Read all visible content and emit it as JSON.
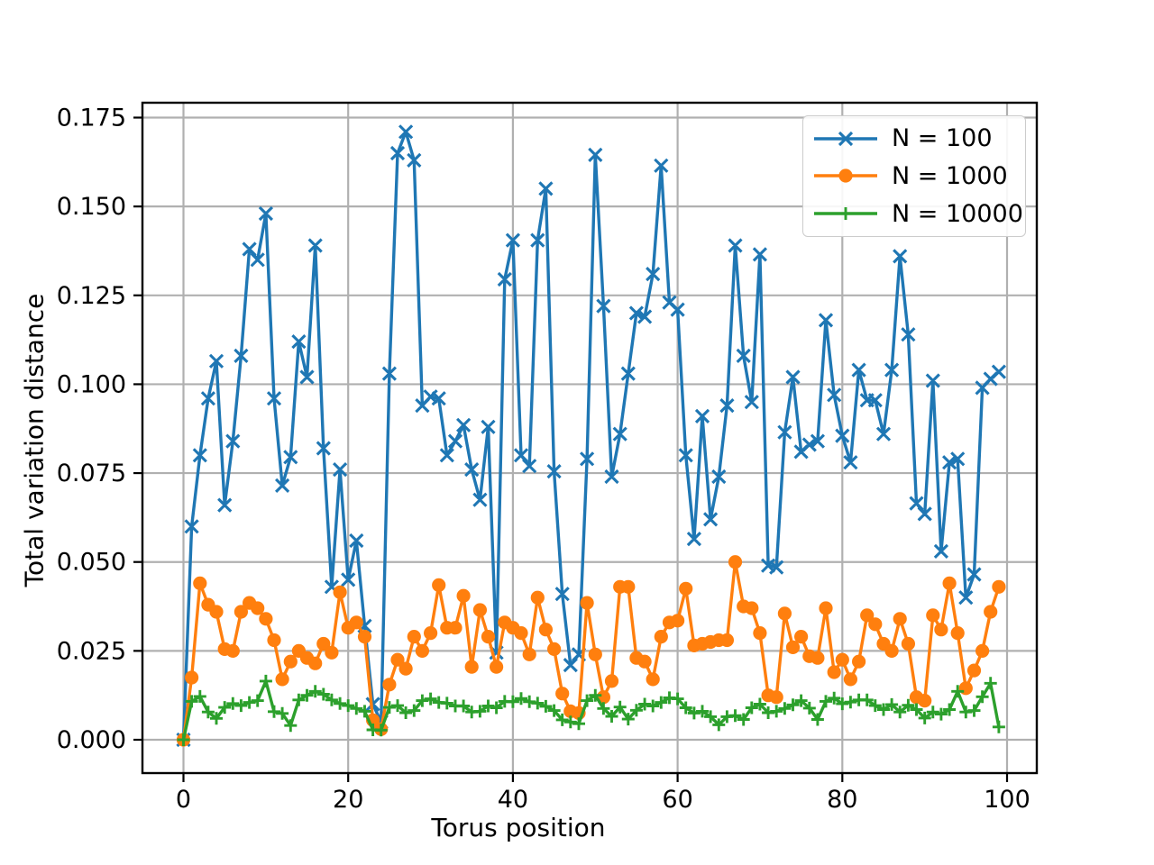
{
  "chart_data": {
    "type": "line",
    "title": "",
    "xlabel": "Torus position",
    "ylabel": "Total variation distance",
    "grid": true,
    "legend_position": "upper right",
    "xlim": [
      -5,
      104
    ],
    "ylim": [
      -0.0093,
      0.1793
    ],
    "x_ticks": [
      0,
      20,
      40,
      60,
      80,
      100
    ],
    "x_tick_labels": [
      "0",
      "20",
      "40",
      "60",
      "80",
      "100"
    ],
    "y_ticks": [
      0,
      0.025,
      0.05,
      0.075,
      0.1,
      0.125,
      0.15,
      0.175
    ],
    "y_tick_labels": [
      "0.000",
      "0.025",
      "0.050",
      "0.075",
      "0.100",
      "0.125",
      "0.150",
      "0.175"
    ],
    "grid_color": "#b0b0b0",
    "x": [
      0,
      1,
      2,
      3,
      4,
      5,
      6,
      7,
      8,
      9,
      10,
      11,
      12,
      13,
      14,
      15,
      16,
      17,
      18,
      19,
      20,
      21,
      22,
      23,
      24,
      25,
      26,
      27,
      28,
      29,
      30,
      31,
      32,
      33,
      34,
      35,
      36,
      37,
      38,
      39,
      40,
      41,
      42,
      43,
      44,
      45,
      46,
      47,
      48,
      49,
      50,
      51,
      52,
      53,
      54,
      55,
      56,
      57,
      58,
      59,
      60,
      61,
      62,
      63,
      64,
      65,
      66,
      67,
      68,
      69,
      70,
      71,
      72,
      73,
      74,
      75,
      76,
      77,
      78,
      79,
      80,
      81,
      82,
      83,
      84,
      85,
      86,
      87,
      88,
      89,
      90,
      91,
      92,
      93,
      94,
      95,
      96,
      97,
      98,
      99
    ],
    "series": [
      {
        "name": "N = 100",
        "color": "#1f77b4",
        "marker": "x",
        "values": [
          0.0,
          0.06,
          0.08,
          0.096,
          0.1065,
          0.066,
          0.084,
          0.108,
          0.138,
          0.135,
          0.148,
          0.096,
          0.0715,
          0.0795,
          0.112,
          0.102,
          0.139,
          0.082,
          0.043,
          0.076,
          0.045,
          0.056,
          0.032,
          0.01,
          0.005,
          0.103,
          0.165,
          0.171,
          0.163,
          0.094,
          0.0965,
          0.096,
          0.08,
          0.084,
          0.0885,
          0.076,
          0.0675,
          0.088,
          0.0245,
          0.1295,
          0.1405,
          0.08,
          0.077,
          0.1405,
          0.155,
          0.0755,
          0.041,
          0.021,
          0.024,
          0.079,
          0.1645,
          0.122,
          0.074,
          0.086,
          0.103,
          0.12,
          0.119,
          0.131,
          0.1615,
          0.123,
          0.121,
          0.08,
          0.0565,
          0.091,
          0.062,
          0.074,
          0.094,
          0.139,
          0.108,
          0.095,
          0.1365,
          0.049,
          0.0485,
          0.0865,
          0.102,
          0.081,
          0.083,
          0.084,
          0.118,
          0.097,
          0.0855,
          0.078,
          0.104,
          0.0955,
          0.0955,
          0.086,
          0.104,
          0.136,
          0.114,
          0.0665,
          0.0635,
          0.101,
          0.053,
          0.078,
          0.079,
          0.04,
          0.0465,
          0.099,
          0.1015,
          0.1035
        ]
      },
      {
        "name": "N = 1000",
        "color": "#ff7f0e",
        "marker": "o",
        "values": [
          0.0,
          0.0175,
          0.044,
          0.038,
          0.036,
          0.0255,
          0.025,
          0.036,
          0.0385,
          0.037,
          0.034,
          0.028,
          0.017,
          0.022,
          0.025,
          0.023,
          0.0215,
          0.027,
          0.0245,
          0.0415,
          0.0315,
          0.033,
          0.029,
          0.0055,
          0.003,
          0.0155,
          0.0225,
          0.02,
          0.029,
          0.025,
          0.03,
          0.0435,
          0.0315,
          0.0315,
          0.0405,
          0.0205,
          0.0365,
          0.029,
          0.0205,
          0.033,
          0.0315,
          0.03,
          0.024,
          0.04,
          0.031,
          0.0255,
          0.013,
          0.008,
          0.0075,
          0.0385,
          0.024,
          0.012,
          0.0165,
          0.043,
          0.043,
          0.023,
          0.022,
          0.017,
          0.029,
          0.033,
          0.0335,
          0.0425,
          0.0265,
          0.027,
          0.0275,
          0.028,
          0.028,
          0.05,
          0.0375,
          0.037,
          0.03,
          0.0125,
          0.012,
          0.0355,
          0.026,
          0.029,
          0.0235,
          0.023,
          0.037,
          0.019,
          0.0225,
          0.017,
          0.022,
          0.035,
          0.0325,
          0.027,
          0.025,
          0.034,
          0.027,
          0.012,
          0.011,
          0.035,
          0.031,
          0.044,
          0.03,
          0.0145,
          0.0195,
          0.025,
          0.036,
          0.043
        ]
      },
      {
        "name": "N = 10000",
        "color": "#2ca02c",
        "marker": "+",
        "values": [
          0.0,
          0.0108,
          0.0122,
          0.0078,
          0.006,
          0.0091,
          0.0102,
          0.0096,
          0.0105,
          0.011,
          0.0165,
          0.0079,
          0.0074,
          0.004,
          0.0112,
          0.0125,
          0.0136,
          0.0128,
          0.0112,
          0.0102,
          0.0096,
          0.0088,
          0.008,
          0.0028,
          0.0027,
          0.0091,
          0.0096,
          0.0076,
          0.0082,
          0.011,
          0.0115,
          0.0105,
          0.0103,
          0.0095,
          0.0095,
          0.0078,
          0.008,
          0.0095,
          0.009,
          0.0108,
          0.0107,
          0.0116,
          0.0107,
          0.0103,
          0.0094,
          0.0082,
          0.0056,
          0.005,
          0.0045,
          0.011,
          0.0125,
          0.0088,
          0.0066,
          0.0092,
          0.0058,
          0.0083,
          0.01,
          0.0095,
          0.0105,
          0.0118,
          0.0115,
          0.009,
          0.0075,
          0.008,
          0.0065,
          0.0042,
          0.0065,
          0.0068,
          0.0057,
          0.009,
          0.01,
          0.0076,
          0.008,
          0.0088,
          0.0098,
          0.011,
          0.0089,
          0.0057,
          0.0108,
          0.0117,
          0.0101,
          0.0106,
          0.0112,
          0.0112,
          0.0096,
          0.0085,
          0.0099,
          0.0078,
          0.0097,
          0.0085,
          0.0061,
          0.0078,
          0.0072,
          0.0085,
          0.0136,
          0.0078,
          0.0082,
          0.0121,
          0.0159,
          0.0036
        ]
      }
    ]
  }
}
